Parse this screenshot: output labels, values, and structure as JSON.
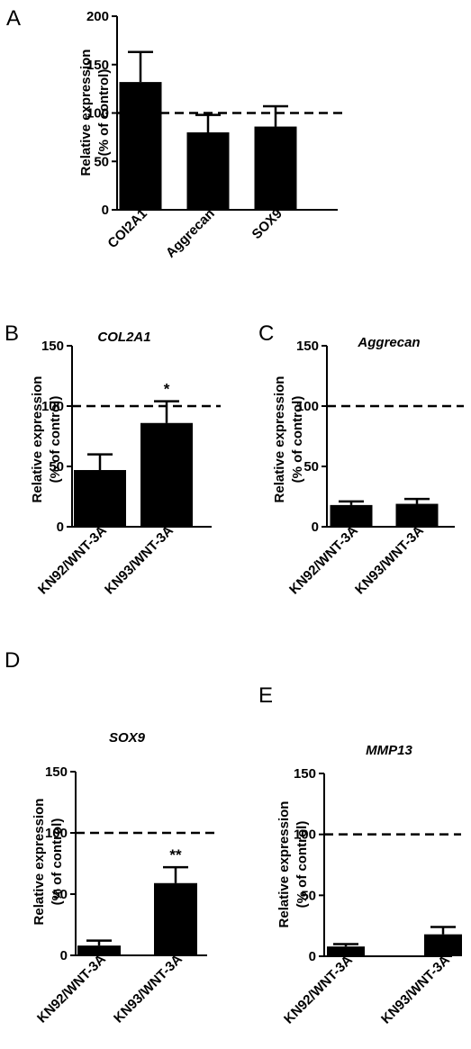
{
  "chart_data": [
    {
      "id": "A",
      "type": "bar",
      "panel_label": "A",
      "title": "",
      "ylabel_line1": "Relative expression",
      "ylabel_line2": "(% of control)",
      "categories": [
        "COl2A1",
        "Aggrecan",
        "SOX9"
      ],
      "values": [
        132,
        80,
        86
      ],
      "errors": [
        31,
        18,
        21
      ],
      "significance": [
        "",
        "",
        ""
      ],
      "reference_line": 100,
      "ylim": [
        0,
        200
      ],
      "yticks": [
        0,
        50,
        100,
        150,
        200
      ],
      "bar_color": "#000000"
    },
    {
      "id": "B",
      "type": "bar",
      "panel_label": "B",
      "title": "COL2A1",
      "ylabel_line1": "Relative expression",
      "ylabel_line2": "(% of control)",
      "categories": [
        "KN92/WNT-3A",
        "KN93/WNT-3A"
      ],
      "values": [
        47,
        86
      ],
      "errors": [
        13,
        18
      ],
      "significance": [
        "",
        "*"
      ],
      "reference_line": 100,
      "ylim": [
        0,
        150
      ],
      "yticks": [
        0,
        50,
        100,
        150
      ],
      "bar_color": "#000000"
    },
    {
      "id": "C",
      "type": "bar",
      "panel_label": "C",
      "title": "Aggrecan",
      "ylabel_line1": "Relative expression",
      "ylabel_line2": "(% of control)",
      "categories": [
        "KN92/WNT-3A",
        "KN93/WNT-3A"
      ],
      "values": [
        18,
        19
      ],
      "errors": [
        3,
        4
      ],
      "significance": [
        "",
        ""
      ],
      "reference_line": 100,
      "ylim": [
        0,
        150
      ],
      "yticks": [
        0,
        50,
        100,
        150
      ],
      "bar_color": "#000000"
    },
    {
      "id": "D",
      "type": "bar",
      "panel_label": "D",
      "title": "SOX9",
      "ylabel_line1": "Relative expression",
      "ylabel_line2": "(% of control)",
      "categories": [
        "KN92/WNT-3A",
        "KN93/WNT-3A"
      ],
      "values": [
        8,
        59
      ],
      "errors": [
        4,
        13
      ],
      "significance": [
        "",
        "**"
      ],
      "reference_line": 100,
      "ylim": [
        0,
        150
      ],
      "yticks": [
        0,
        50,
        100,
        150
      ],
      "bar_color": "#000000"
    },
    {
      "id": "E",
      "type": "bar",
      "panel_label": "E",
      "title": "MMP13",
      "ylabel_line1": "Relative expression",
      "ylabel_line2": "(% of control)",
      "categories": [
        "KN92/WNT-3A",
        "KN93/WNT-3A"
      ],
      "values": [
        8,
        18
      ],
      "errors": [
        2,
        6
      ],
      "significance": [
        "",
        ""
      ],
      "reference_line": 100,
      "ylim": [
        0,
        150
      ],
      "yticks": [
        0,
        50,
        100,
        150
      ],
      "bar_color": "#000000"
    }
  ]
}
